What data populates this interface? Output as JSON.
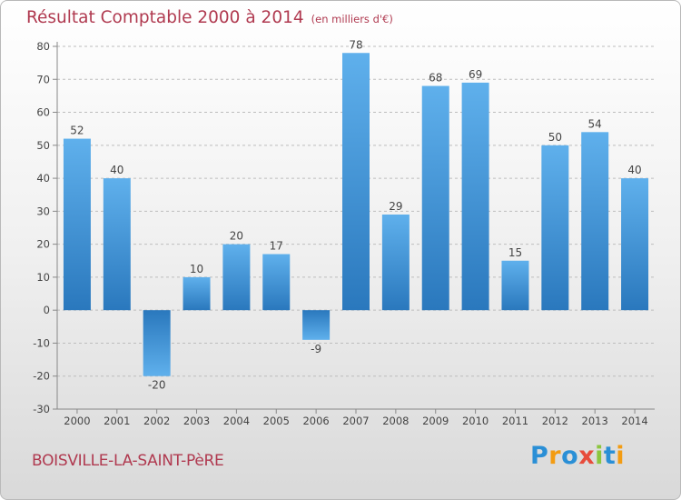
{
  "header": {
    "title": "Résultat Comptable 2000 à 2014",
    "subtitle": "(en milliers d'€)"
  },
  "footer": {
    "place": "BOISVILLE-LA-SAINT-PèRE",
    "brand": "Proxiti",
    "brand_letters": [
      {
        "ch": "P",
        "color": "#2a8fd6"
      },
      {
        "ch": "r",
        "color": "#f39c12"
      },
      {
        "ch": "o",
        "color": "#2a8fd6"
      },
      {
        "ch": "x",
        "color": "#e74c3c"
      },
      {
        "ch": "i",
        "color": "#8cc63f"
      },
      {
        "ch": "t",
        "color": "#2a8fd6"
      },
      {
        "ch": "i",
        "color": "#f39c12"
      }
    ]
  },
  "chart_data": {
    "type": "bar",
    "title": "Résultat Comptable 2000 à 2014",
    "subtitle": "(en milliers d'€)",
    "xlabel": "",
    "ylabel": "",
    "categories": [
      "2000",
      "2001",
      "2002",
      "2003",
      "2004",
      "2005",
      "2006",
      "2007",
      "2008",
      "2009",
      "2010",
      "2011",
      "2012",
      "2013",
      "2014"
    ],
    "values": [
      52,
      40,
      -20,
      10,
      20,
      17,
      -9,
      78,
      29,
      68,
      69,
      15,
      50,
      54,
      40
    ],
    "ylim": [
      -30,
      80
    ],
    "yticks": [
      -30,
      -20,
      -10,
      0,
      10,
      20,
      30,
      40,
      50,
      60,
      70,
      80
    ],
    "grid": true,
    "legend": "none",
    "colors": {
      "bar_light": "#5fb0ec",
      "bar_dark": "#2a78bd",
      "title": "#b03a50",
      "grid": "#bdbdbd",
      "axis": "#888888",
      "label": "#444444"
    }
  }
}
